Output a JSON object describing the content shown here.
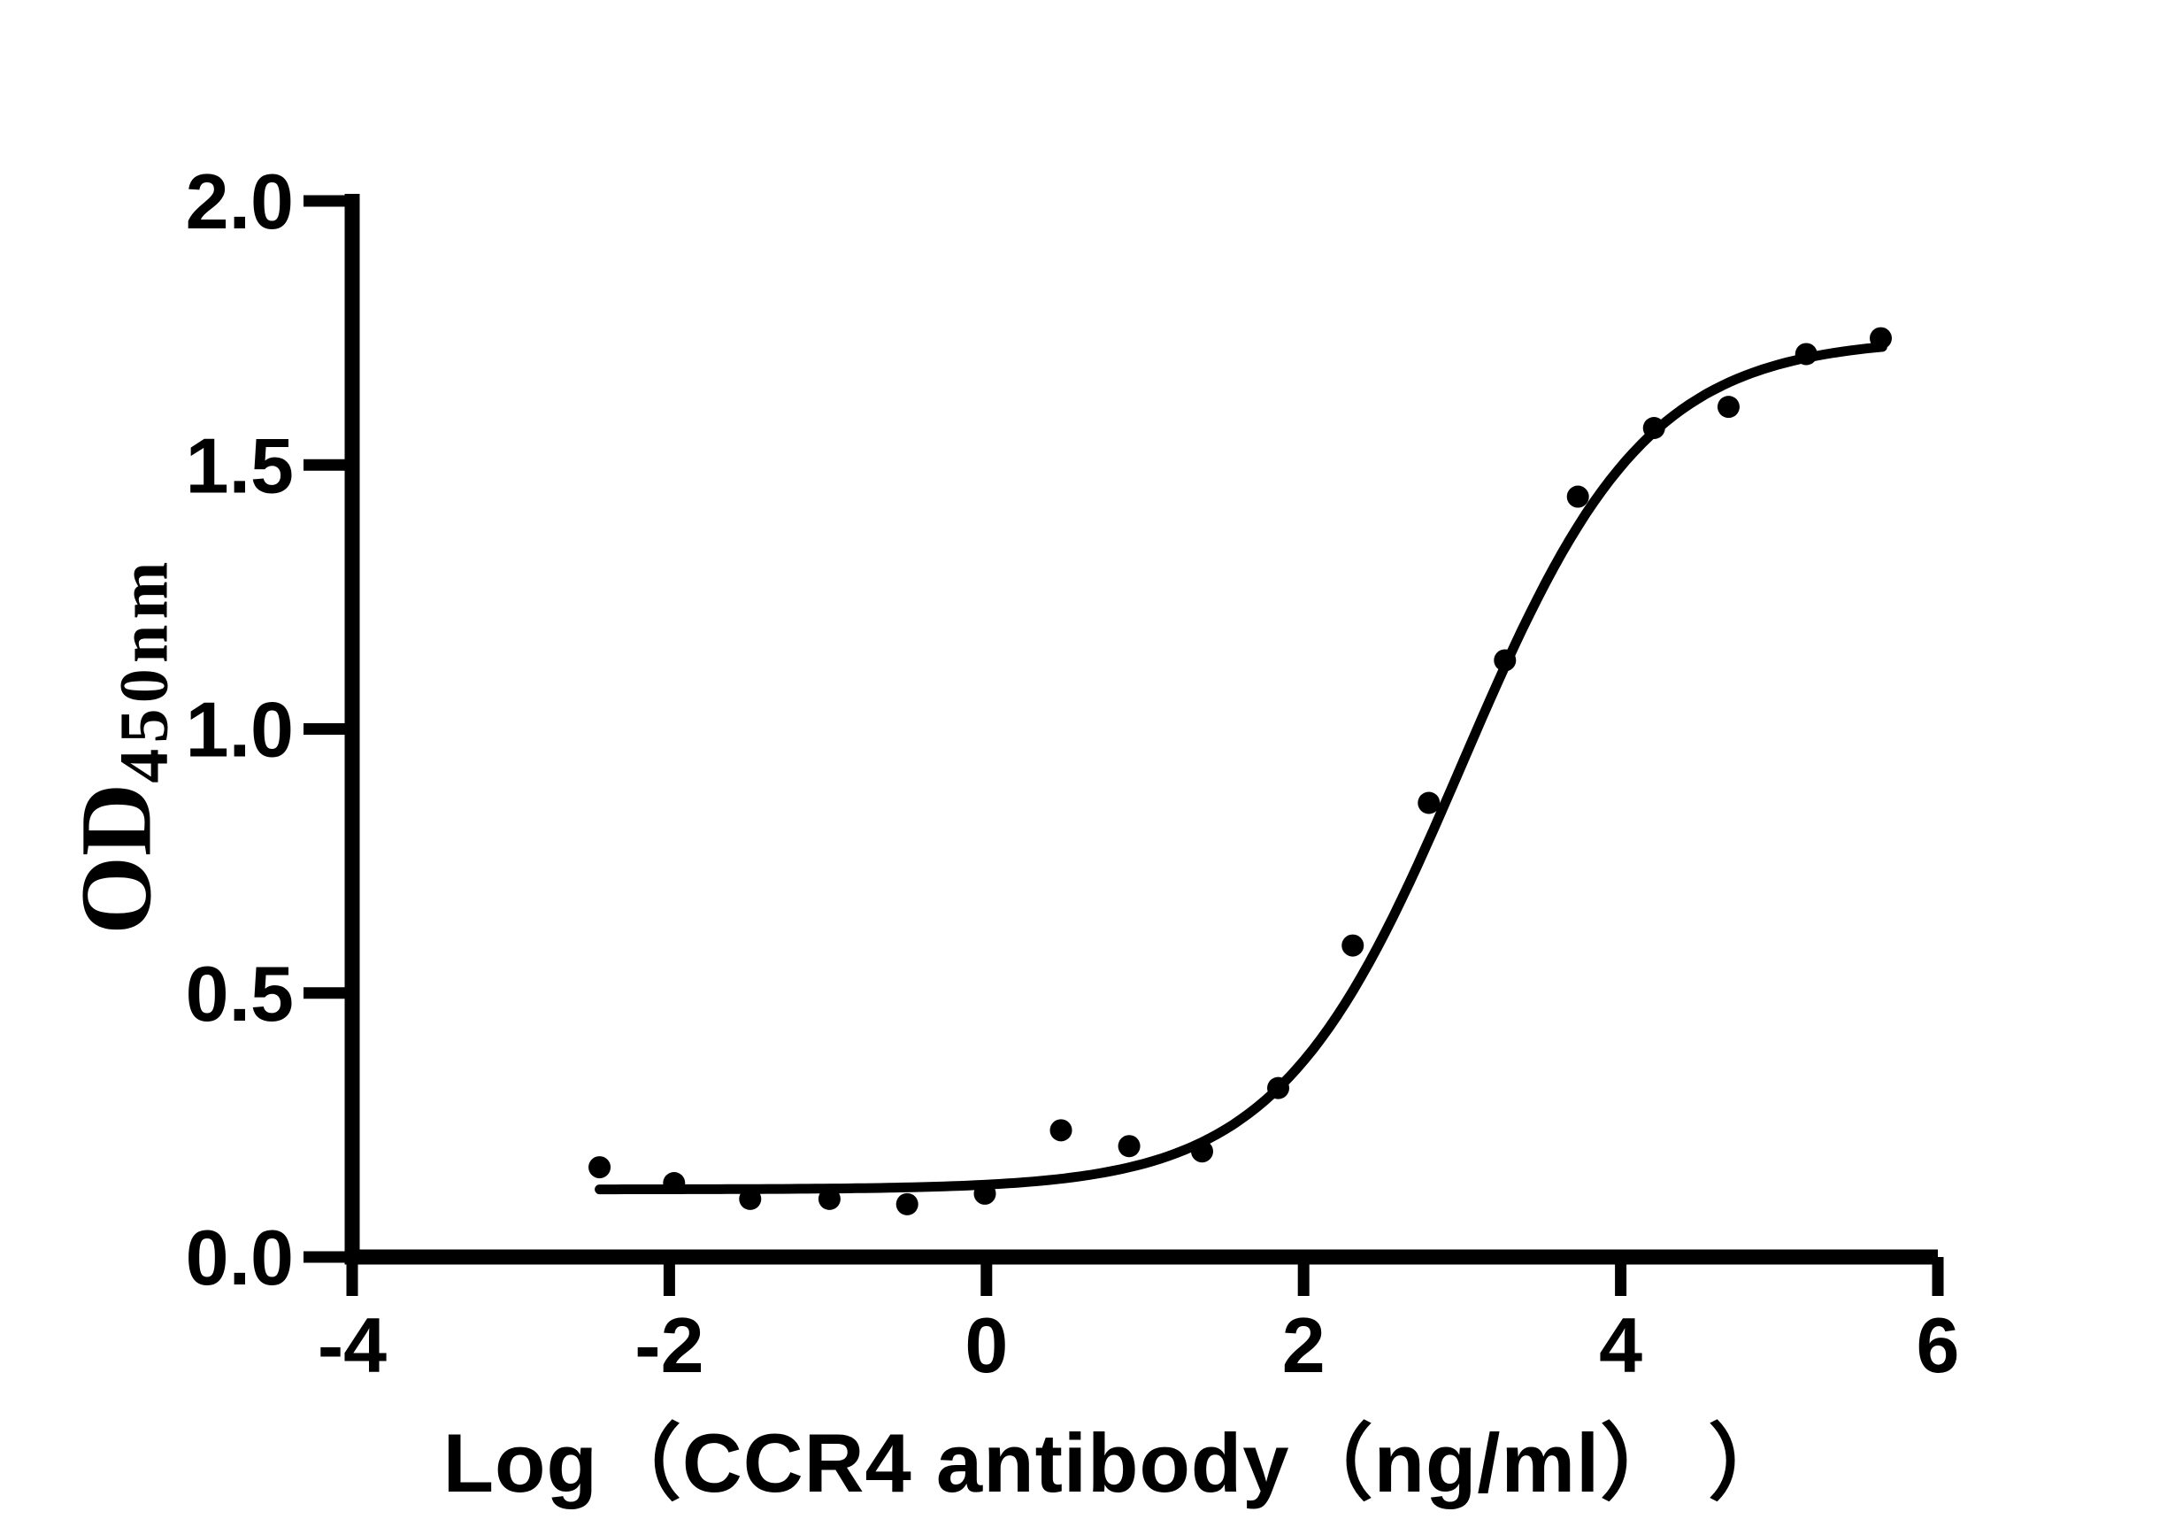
{
  "figure": {
    "background": "#ffffff",
    "ink_color": "#000000"
  },
  "chart_data": {
    "type": "scatter",
    "title": "",
    "xlabel": "Log（CCR4 antibody（ng/ml） ）",
    "ylabel_main": "OD",
    "ylabel_subscript": "450nm",
    "xlim": [
      -4,
      6
    ],
    "ylim": [
      0,
      2
    ],
    "x_tick_values": [
      -4,
      -2,
      0,
      2,
      4,
      6
    ],
    "x_tick_labels": [
      "-4",
      "-2",
      "0",
      "2",
      "4",
      "6"
    ],
    "y_tick_values": [
      0,
      0.5,
      1,
      1.5,
      2
    ],
    "y_tick_labels": [
      "0.0",
      "0.5",
      "1.0",
      "1.5",
      "2.0"
    ],
    "grid": false,
    "legend": false,
    "marker_color": "#000000",
    "curve_color": "#000000",
    "points": [
      {
        "x": -2.44,
        "y": 0.17
      },
      {
        "x": -1.97,
        "y": 0.14
      },
      {
        "x": -1.49,
        "y": 0.11
      },
      {
        "x": -0.99,
        "y": 0.11
      },
      {
        "x": -0.5,
        "y": 0.1
      },
      {
        "x": -0.01,
        "y": 0.12
      },
      {
        "x": 0.47,
        "y": 0.24
      },
      {
        "x": 0.9,
        "y": 0.21
      },
      {
        "x": 1.36,
        "y": 0.2
      },
      {
        "x": 1.84,
        "y": 0.32
      },
      {
        "x": 2.31,
        "y": 0.59
      },
      {
        "x": 2.79,
        "y": 0.86
      },
      {
        "x": 3.27,
        "y": 1.13
      },
      {
        "x": 3.73,
        "y": 1.44
      },
      {
        "x": 4.21,
        "y": 1.57
      },
      {
        "x": 4.68,
        "y": 1.61
      },
      {
        "x": 5.17,
        "y": 1.71
      },
      {
        "x": 5.64,
        "y": 1.74
      }
    ],
    "fit_curve": {
      "model": "4PL logistic",
      "bottom": 0.128,
      "top": 1.74,
      "logEC50": 3.0,
      "hillslope": 0.75,
      "x_start": -2.44,
      "x_end": 5.65
    }
  }
}
